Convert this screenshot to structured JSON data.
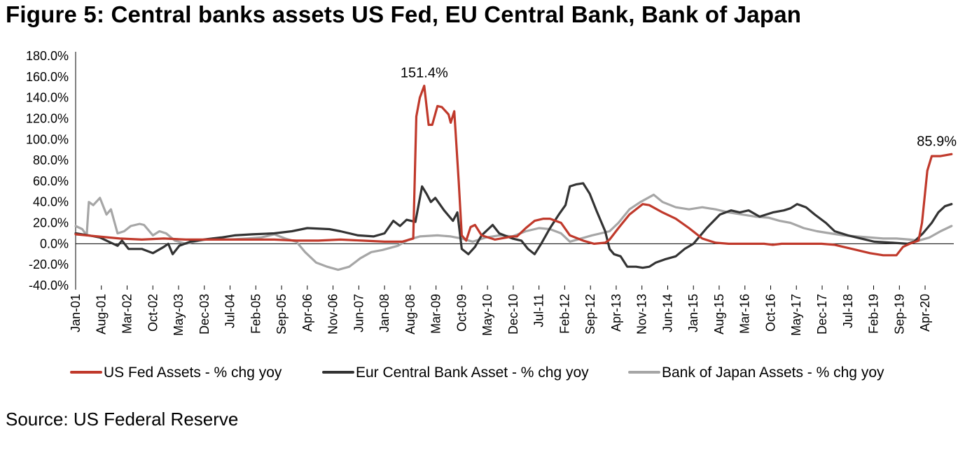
{
  "title": "Figure 5: Central banks assets US Fed, EU Central Bank, Bank of Japan",
  "source": "Source: US Federal Reserve",
  "chart_data": {
    "type": "line",
    "title": "Figure 5: Central banks assets US Fed, EU Central Bank, Bank of Japan",
    "xlabel": "",
    "ylabel": "",
    "ylim": [
      -40,
      180
    ],
    "yticks": [
      -40,
      -20,
      0,
      20,
      40,
      60,
      80,
      100,
      120,
      140,
      160,
      180
    ],
    "ytick_labels": [
      "-40.0%",
      "-20.0%",
      "0.0%",
      "20.0%",
      "40.0%",
      "60.0%",
      "80.0%",
      "100.0%",
      "120.0%",
      "140.0%",
      "160.0%",
      "180.0%"
    ],
    "x_range": [
      2001.0,
      2020.9
    ],
    "xticks": [
      {
        "label": "Jan-01",
        "t": 2001.0
      },
      {
        "label": "Aug-01",
        "t": 2001.583
      },
      {
        "label": "Mar-02",
        "t": 2002.167
      },
      {
        "label": "Oct-02",
        "t": 2002.75
      },
      {
        "label": "May-03",
        "t": 2003.333
      },
      {
        "label": "Dec-03",
        "t": 2003.917
      },
      {
        "label": "Jul-04",
        "t": 2004.5
      },
      {
        "label": "Feb-05",
        "t": 2005.083
      },
      {
        "label": "Sep-05",
        "t": 2005.667
      },
      {
        "label": "Apr-06",
        "t": 2006.25
      },
      {
        "label": "Nov-06",
        "t": 2006.833
      },
      {
        "label": "Jun-07",
        "t": 2007.417
      },
      {
        "label": "Jan-08",
        "t": 2008.0
      },
      {
        "label": "Aug-08",
        "t": 2008.583
      },
      {
        "label": "Mar-09",
        "t": 2009.167
      },
      {
        "label": "Oct-09",
        "t": 2009.75
      },
      {
        "label": "May-10",
        "t": 2010.333
      },
      {
        "label": "Dec-10",
        "t": 2010.917
      },
      {
        "label": "Jul-11",
        "t": 2011.5
      },
      {
        "label": "Feb-12",
        "t": 2012.083
      },
      {
        "label": "Sep-12",
        "t": 2012.667
      },
      {
        "label": "Apr-13",
        "t": 2013.25
      },
      {
        "label": "Nov-13",
        "t": 2013.833
      },
      {
        "label": "Jun-14",
        "t": 2014.417
      },
      {
        "label": "Jan-15",
        "t": 2015.0
      },
      {
        "label": "Aug-15",
        "t": 2015.583
      },
      {
        "label": "Mar-16",
        "t": 2016.167
      },
      {
        "label": "Oct-16",
        "t": 2016.75
      },
      {
        "label": "May-17",
        "t": 2017.333
      },
      {
        "label": "Dec-17",
        "t": 2017.917
      },
      {
        "label": "Jul-18",
        "t": 2018.5
      },
      {
        "label": "Feb-19",
        "t": 2019.083
      },
      {
        "label": "Sep-19",
        "t": 2019.667
      },
      {
        "label": "Apr-20",
        "t": 2020.25
      }
    ],
    "legend_position": "bottom",
    "annotations": [
      {
        "text": "151.4%",
        "t": 2008.9,
        "value": 151.4
      },
      {
        "text": "85.9%",
        "t": 2020.85,
        "value": 85.9
      }
    ],
    "series": [
      {
        "name": "US Fed Assets - % chg yoy",
        "color": "#c0392b",
        "points": [
          [
            2001.0,
            9
          ],
          [
            2001.5,
            7
          ],
          [
            2002.0,
            5
          ],
          [
            2002.5,
            4
          ],
          [
            2003.0,
            5
          ],
          [
            2003.5,
            4
          ],
          [
            2004.0,
            4
          ],
          [
            2004.5,
            4
          ],
          [
            2005.0,
            4
          ],
          [
            2005.5,
            4
          ],
          [
            2006.0,
            3
          ],
          [
            2006.5,
            3
          ],
          [
            2007.0,
            4
          ],
          [
            2007.5,
            3
          ],
          [
            2008.0,
            2
          ],
          [
            2008.4,
            2
          ],
          [
            2008.65,
            5
          ],
          [
            2008.72,
            122
          ],
          [
            2008.8,
            140
          ],
          [
            2008.9,
            151.4
          ],
          [
            2009.0,
            114
          ],
          [
            2009.08,
            114
          ],
          [
            2009.2,
            132
          ],
          [
            2009.3,
            131
          ],
          [
            2009.45,
            124
          ],
          [
            2009.5,
            116
          ],
          [
            2009.58,
            127
          ],
          [
            2009.68,
            60
          ],
          [
            2009.75,
            8
          ],
          [
            2009.85,
            3
          ],
          [
            2009.95,
            16
          ],
          [
            2010.05,
            18
          ],
          [
            2010.2,
            8
          ],
          [
            2010.5,
            4
          ],
          [
            2010.9,
            7
          ],
          [
            2011.0,
            7
          ],
          [
            2011.2,
            15
          ],
          [
            2011.4,
            22
          ],
          [
            2011.6,
            24
          ],
          [
            2011.75,
            24
          ],
          [
            2012.0,
            20
          ],
          [
            2012.2,
            8
          ],
          [
            2012.5,
            3
          ],
          [
            2012.75,
            0
          ],
          [
            2013.0,
            1
          ],
          [
            2013.1,
            4
          ],
          [
            2013.3,
            15
          ],
          [
            2013.55,
            28
          ],
          [
            2013.85,
            38
          ],
          [
            2014.0,
            37
          ],
          [
            2014.3,
            30
          ],
          [
            2014.6,
            24
          ],
          [
            2014.9,
            15
          ],
          [
            2015.2,
            5
          ],
          [
            2015.5,
            1
          ],
          [
            2015.8,
            0
          ],
          [
            2016.3,
            0
          ],
          [
            2016.6,
            0
          ],
          [
            2016.8,
            -1
          ],
          [
            2017.0,
            0
          ],
          [
            2017.5,
            0
          ],
          [
            2017.9,
            0
          ],
          [
            2018.2,
            -1
          ],
          [
            2018.6,
            -5
          ],
          [
            2019.0,
            -9
          ],
          [
            2019.3,
            -11
          ],
          [
            2019.6,
            -11
          ],
          [
            2019.75,
            -3
          ],
          [
            2019.9,
            0
          ],
          [
            2020.1,
            3
          ],
          [
            2020.18,
            20
          ],
          [
            2020.3,
            70
          ],
          [
            2020.4,
            84
          ],
          [
            2020.6,
            84
          ],
          [
            2020.85,
            85.9
          ]
        ]
      },
      {
        "name": "Eur Central Bank Asset - % chg yoy",
        "color": "#333333",
        "points": [
          [
            2001.0,
            10
          ],
          [
            2001.3,
            8
          ],
          [
            2001.55,
            6
          ],
          [
            2001.75,
            2
          ],
          [
            2001.95,
            -2
          ],
          [
            2002.05,
            3
          ],
          [
            2002.2,
            -5
          ],
          [
            2002.5,
            -5
          ],
          [
            2002.75,
            -9
          ],
          [
            2003.0,
            -3
          ],
          [
            2003.1,
            0
          ],
          [
            2003.2,
            -10
          ],
          [
            2003.35,
            -2
          ],
          [
            2003.6,
            2
          ],
          [
            2003.9,
            4
          ],
          [
            2004.3,
            6
          ],
          [
            2004.6,
            8
          ],
          [
            2005.0,
            9
          ],
          [
            2005.5,
            10
          ],
          [
            2005.9,
            12
          ],
          [
            2006.25,
            15
          ],
          [
            2006.75,
            14
          ],
          [
            2007.0,
            12
          ],
          [
            2007.4,
            8
          ],
          [
            2007.75,
            7
          ],
          [
            2008.0,
            10
          ],
          [
            2008.2,
            22
          ],
          [
            2008.35,
            17
          ],
          [
            2008.5,
            23
          ],
          [
            2008.7,
            21
          ],
          [
            2008.85,
            55
          ],
          [
            2008.95,
            48
          ],
          [
            2009.05,
            40
          ],
          [
            2009.15,
            44
          ],
          [
            2009.35,
            32
          ],
          [
            2009.55,
            22
          ],
          [
            2009.65,
            30
          ],
          [
            2009.75,
            -5
          ],
          [
            2009.9,
            -10
          ],
          [
            2010.05,
            -3
          ],
          [
            2010.2,
            8
          ],
          [
            2010.45,
            18
          ],
          [
            2010.6,
            10
          ],
          [
            2010.9,
            5
          ],
          [
            2011.1,
            3
          ],
          [
            2011.25,
            -5
          ],
          [
            2011.4,
            -10
          ],
          [
            2011.55,
            0
          ],
          [
            2011.75,
            15
          ],
          [
            2011.95,
            28
          ],
          [
            2012.1,
            37
          ],
          [
            2012.2,
            55
          ],
          [
            2012.35,
            57
          ],
          [
            2012.5,
            58
          ],
          [
            2012.65,
            48
          ],
          [
            2012.8,
            32
          ],
          [
            2013.0,
            12
          ],
          [
            2013.1,
            -5
          ],
          [
            2013.2,
            -10
          ],
          [
            2013.35,
            -12
          ],
          [
            2013.5,
            -22
          ],
          [
            2013.7,
            -22
          ],
          [
            2013.85,
            -23
          ],
          [
            2014.0,
            -22
          ],
          [
            2014.15,
            -18
          ],
          [
            2014.35,
            -15
          ],
          [
            2014.6,
            -12
          ],
          [
            2014.8,
            -5
          ],
          [
            2015.0,
            0
          ],
          [
            2015.3,
            15
          ],
          [
            2015.6,
            28
          ],
          [
            2015.85,
            32
          ],
          [
            2016.05,
            30
          ],
          [
            2016.25,
            32
          ],
          [
            2016.5,
            26
          ],
          [
            2016.8,
            30
          ],
          [
            2017.05,
            32
          ],
          [
            2017.2,
            34
          ],
          [
            2017.35,
            38
          ],
          [
            2017.55,
            35
          ],
          [
            2017.75,
            28
          ],
          [
            2018.0,
            20
          ],
          [
            2018.2,
            12
          ],
          [
            2018.5,
            8
          ],
          [
            2018.8,
            5
          ],
          [
            2019.1,
            2
          ],
          [
            2019.5,
            1
          ],
          [
            2019.85,
            0
          ],
          [
            2020.0,
            2
          ],
          [
            2020.2,
            10
          ],
          [
            2020.4,
            20
          ],
          [
            2020.55,
            30
          ],
          [
            2020.7,
            36
          ],
          [
            2020.85,
            38
          ]
        ]
      },
      {
        "name": "Bank of Japan Assets - % chg yoy",
        "color": "#a6a6a6",
        "points": [
          [
            2001.0,
            17
          ],
          [
            2001.15,
            14
          ],
          [
            2001.25,
            8
          ],
          [
            2001.3,
            40
          ],
          [
            2001.4,
            37
          ],
          [
            2001.55,
            44
          ],
          [
            2001.7,
            28
          ],
          [
            2001.8,
            33
          ],
          [
            2001.95,
            10
          ],
          [
            2002.1,
            12
          ],
          [
            2002.25,
            17
          ],
          [
            2002.45,
            19
          ],
          [
            2002.55,
            18
          ],
          [
            2002.75,
            8
          ],
          [
            2002.9,
            12
          ],
          [
            2003.05,
            10
          ],
          [
            2003.25,
            3
          ],
          [
            2003.5,
            0
          ],
          [
            2003.8,
            3
          ],
          [
            2004.1,
            5
          ],
          [
            2004.5,
            4
          ],
          [
            2004.9,
            5
          ],
          [
            2005.2,
            6
          ],
          [
            2005.5,
            9
          ],
          [
            2005.75,
            5
          ],
          [
            2006.0,
            2
          ],
          [
            2006.2,
            -8
          ],
          [
            2006.45,
            -18
          ],
          [
            2006.7,
            -22
          ],
          [
            2006.95,
            -25
          ],
          [
            2007.2,
            -22
          ],
          [
            2007.45,
            -14
          ],
          [
            2007.7,
            -8
          ],
          [
            2007.95,
            -6
          ],
          [
            2008.3,
            -2
          ],
          [
            2008.55,
            4
          ],
          [
            2008.8,
            7
          ],
          [
            2009.2,
            8
          ],
          [
            2009.5,
            7
          ],
          [
            2009.75,
            5
          ],
          [
            2010.0,
            2
          ],
          [
            2010.3,
            6
          ],
          [
            2010.6,
            8
          ],
          [
            2010.9,
            7
          ],
          [
            2011.2,
            12
          ],
          [
            2011.5,
            15
          ],
          [
            2011.75,
            14
          ],
          [
            2012.0,
            10
          ],
          [
            2012.2,
            2
          ],
          [
            2012.45,
            5
          ],
          [
            2012.7,
            8
          ],
          [
            2012.9,
            10
          ],
          [
            2013.1,
            12
          ],
          [
            2013.3,
            20
          ],
          [
            2013.55,
            33
          ],
          [
            2013.8,
            40
          ],
          [
            2014.1,
            47
          ],
          [
            2014.3,
            40
          ],
          [
            2014.6,
            35
          ],
          [
            2014.9,
            33
          ],
          [
            2015.2,
            35
          ],
          [
            2015.5,
            33
          ],
          [
            2015.8,
            30
          ],
          [
            2016.1,
            28
          ],
          [
            2016.4,
            26
          ],
          [
            2016.7,
            25
          ],
          [
            2016.95,
            22
          ],
          [
            2017.2,
            20
          ],
          [
            2017.5,
            15
          ],
          [
            2017.8,
            12
          ],
          [
            2018.1,
            10
          ],
          [
            2018.4,
            8
          ],
          [
            2018.7,
            7
          ],
          [
            2019.0,
            6
          ],
          [
            2019.3,
            5
          ],
          [
            2019.6,
            5
          ],
          [
            2019.9,
            4
          ],
          [
            2020.1,
            3
          ],
          [
            2020.35,
            6
          ],
          [
            2020.6,
            12
          ],
          [
            2020.85,
            17
          ]
        ]
      }
    ]
  }
}
